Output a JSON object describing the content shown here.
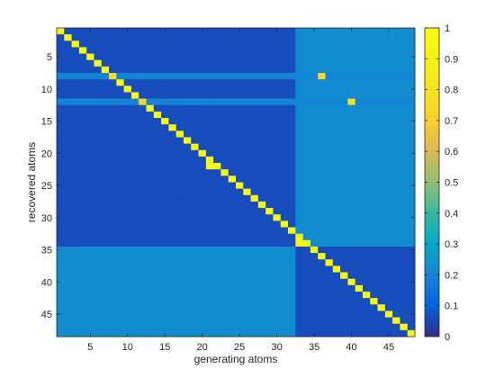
{
  "chart_data": {
    "type": "heatmap",
    "title": "",
    "xlabel": "generating atoms",
    "ylabel": "recovered atoms",
    "n_rows": 48,
    "n_cols": 48,
    "x_ticks": [
      5,
      10,
      15,
      20,
      25,
      30,
      35,
      40,
      45
    ],
    "y_ticks": [
      5,
      10,
      15,
      20,
      25,
      30,
      35,
      40,
      45
    ],
    "colorbar": {
      "range": [
        0,
        1
      ],
      "ticks": [
        0,
        0.1,
        0.2,
        0.3,
        0.4,
        0.5,
        0.6,
        0.7,
        0.8,
        0.9,
        1
      ],
      "colormap": "parula"
    },
    "grid": false,
    "blocks": {
      "group_a": [
        1,
        34
      ],
      "group_b": [
        35,
        48
      ],
      "col_split_after": 32,
      "within_group_value": 0.06,
      "cross_group_value": 0.22
    },
    "diagonal_value": 1.0,
    "highlight_rows": [
      {
        "row": 8,
        "value": 0.2,
        "peaks": [
          {
            "col": 8,
            "value": 0.75
          },
          {
            "col": 36,
            "value": 0.72
          }
        ]
      },
      {
        "row": 12,
        "value": 0.2,
        "peaks": [
          {
            "col": 12,
            "value": 0.72
          },
          {
            "col": 40,
            "value": 0.78
          }
        ]
      }
    ],
    "extra_cells": [
      {
        "row": 22,
        "col": 21,
        "value": 0.95
      },
      {
        "row": 34,
        "col": 33,
        "value": 0.9
      }
    ]
  }
}
